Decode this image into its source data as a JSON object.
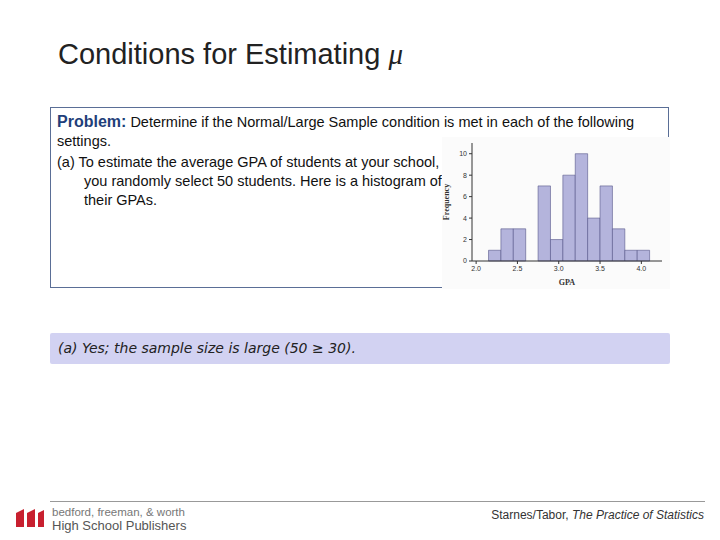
{
  "title": "Conditions for Estimating μ",
  "problem": {
    "label": "Problem:",
    "text": "Determine if the Normal/Large Sample condition is met in each of the following settings.",
    "part_a": "(a) To estimate the average GPA of students at your school, you randomly select 50 students. Here is a histogram of their GPAs."
  },
  "chart_data": {
    "type": "histogram",
    "x_label": "GPA",
    "y_label": "Frequency",
    "bins": [
      2.15,
      2.3,
      2.45,
      2.6,
      2.75,
      2.9,
      3.05,
      3.2,
      3.35,
      3.5,
      3.65,
      3.8,
      3.95,
      4.1
    ],
    "values": [
      1,
      3,
      3,
      0,
      7,
      2,
      8,
      10,
      4,
      7,
      3,
      1,
      1
    ],
    "color": "#b4b4dc",
    "xlim": [
      1.95,
      4.25
    ],
    "xticks": [
      {
        "value": 2,
        "label": "2.0"
      },
      2.5,
      {
        "value": 3,
        "label": "3.0"
      },
      3.5,
      {
        "value": 4,
        "label": "4.0"
      }
    ],
    "ylim": [
      0,
      11
    ],
    "yticks": [
      0,
      2,
      4,
      6,
      8,
      10
    ],
    "grid": false
  },
  "answer": "(a) Yes; the sample size is large (50 ≥ 30).",
  "footer": {
    "publisher": [
      "bedford, freeman, & worth",
      "High School Publishers"
    ],
    "citation": {
      "authors": "Starnes/Tabor,",
      "book": "The Practice of Statistics"
    }
  }
}
